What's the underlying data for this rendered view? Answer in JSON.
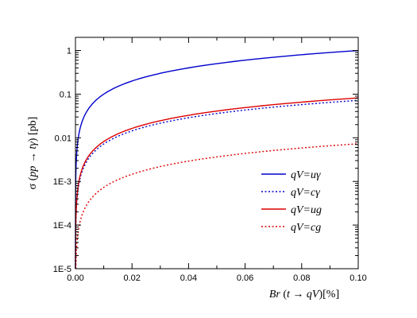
{
  "chart_data": {
    "type": "line",
    "title": "",
    "xlabel": {
      "pre": "Br",
      "mid": " (",
      "var": "t",
      "arrow": " → ",
      "var2": "qV",
      "post": ")[%]"
    },
    "ylabel": {
      "pre": "σ",
      "mid": " (",
      "var": "pp",
      "arrow": " → ",
      "var2": "tγ",
      "post": ") [pb]"
    },
    "xlim": [
      0.0,
      0.1
    ],
    "ylim": [
      1e-05,
      2
    ],
    "yscale": "log",
    "grid": false,
    "legend_position": "right",
    "x_ticks": [
      {
        "value": 0.0,
        "label": "0.00"
      },
      {
        "value": 0.02,
        "label": "0.02"
      },
      {
        "value": 0.04,
        "label": "0.04"
      },
      {
        "value": 0.06,
        "label": "0.06"
      },
      {
        "value": 0.08,
        "label": "0.08"
      },
      {
        "value": 0.1,
        "label": "0.10"
      }
    ],
    "y_ticks": [
      {
        "value": 1e-05,
        "label": "1E-5"
      },
      {
        "value": 0.0001,
        "label": "1E-4"
      },
      {
        "value": 0.001,
        "label": "1E-3"
      },
      {
        "value": 0.01,
        "label": "0.01"
      },
      {
        "value": 0.1,
        "label": "0.1"
      },
      {
        "value": 1,
        "label": "1"
      }
    ],
    "series": [
      {
        "name": "qV=uγ",
        "color": "#0000cc",
        "dash": "solid",
        "value_at_xmax": 1.0
      },
      {
        "name": "qV=cγ",
        "color": "#0000cc",
        "dash": "dotted",
        "value_at_xmax": 0.072
      },
      {
        "name": "qV=ug",
        "color": "#dd0000",
        "dash": "solid",
        "value_at_xmax": 0.082
      },
      {
        "name": "qV=cg",
        "color": "#dd0000",
        "dash": "dotted",
        "value_at_xmax": 0.0073
      }
    ]
  }
}
